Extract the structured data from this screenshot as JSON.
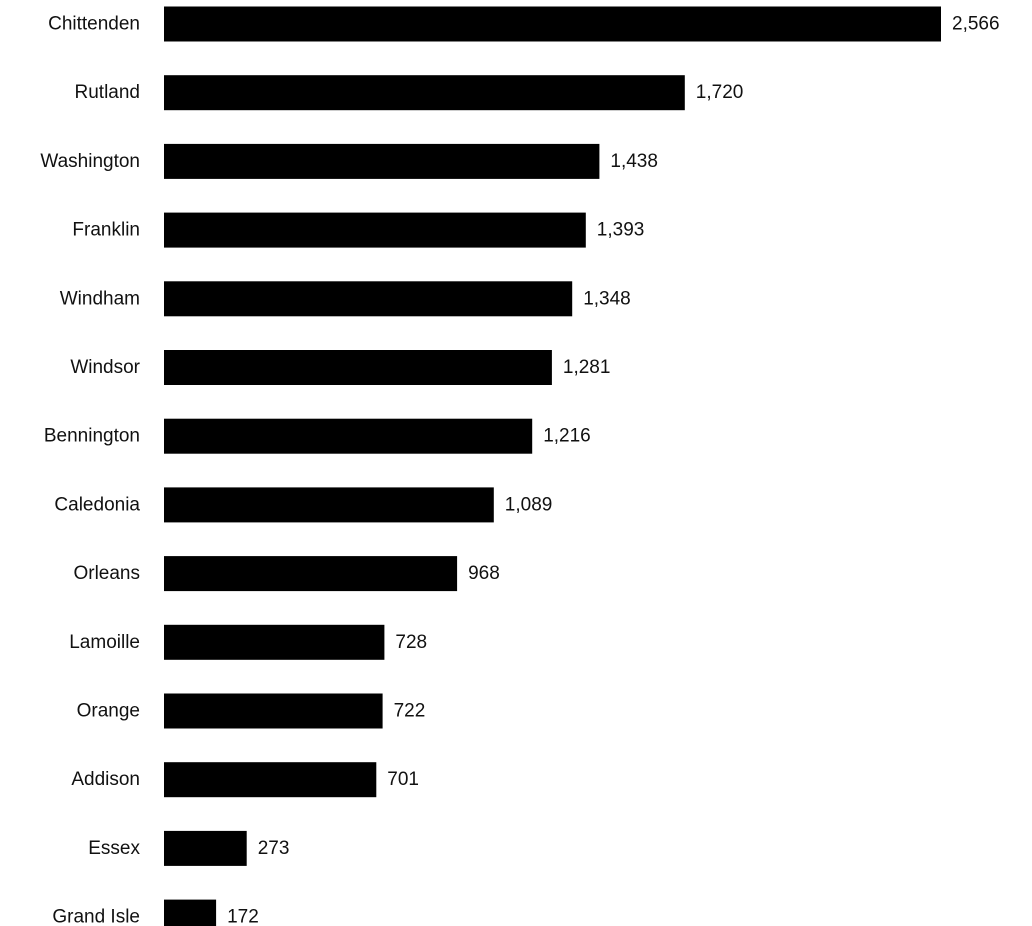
{
  "chart_data": {
    "type": "bar",
    "orientation": "horizontal",
    "categories": [
      "Chittenden",
      "Rutland",
      "Washington",
      "Franklin",
      "Windham",
      "Windsor",
      "Bennington",
      "Caledonia",
      "Orleans",
      "Lamoille",
      "Orange",
      "Addison",
      "Essex",
      "Grand Isle"
    ],
    "values": [
      2566,
      1720,
      1438,
      1393,
      1348,
      1281,
      1216,
      1089,
      968,
      728,
      722,
      701,
      273,
      172
    ],
    "value_labels": [
      "2,566",
      "1,720",
      "1,438",
      "1,393",
      "1,348",
      "1,281",
      "1,216",
      "1,089",
      "968",
      "728",
      "722",
      "701",
      "273",
      "172"
    ],
    "title": "",
    "xlabel": "",
    "ylabel": "",
    "xlim": [
      0,
      2566
    ],
    "grid": false,
    "legend": "none",
    "bar_color": "#000000"
  }
}
